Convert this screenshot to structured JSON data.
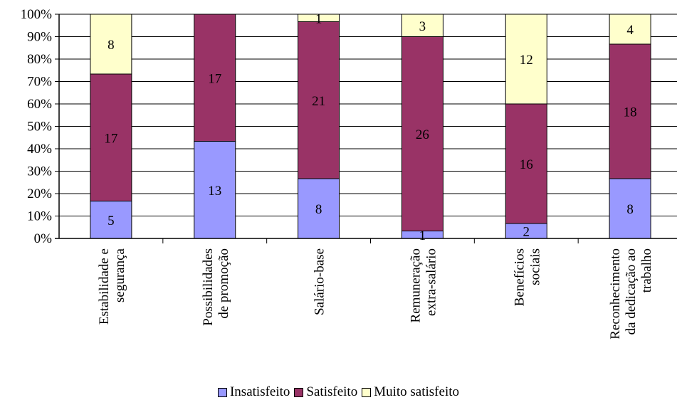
{
  "chart_data": {
    "type": "bar",
    "stacked": true,
    "percent_stacked": true,
    "categories": [
      [
        "Estabilidade e",
        "segurança"
      ],
      [
        "Possibilidades",
        "de promoção"
      ],
      [
        "Salário-base"
      ],
      [
        "Remuneração",
        "extra-salário"
      ],
      [
        "Benefícios",
        "sociais"
      ],
      [
        "Reconhecimento",
        "da dedicação ao",
        "trabalho"
      ]
    ],
    "series": [
      {
        "name": "Insatisfeito",
        "color": "#9999ff",
        "values": [
          5,
          13,
          8,
          1,
          2,
          8
        ]
      },
      {
        "name": "Satisfeito",
        "color": "#993366",
        "values": [
          17,
          17,
          21,
          26,
          16,
          18
        ]
      },
      {
        "name": "Muito satisfeito",
        "color": "#ffffcc",
        "values": [
          8,
          0,
          1,
          3,
          12,
          4
        ]
      }
    ],
    "y_ticks": [
      "0%",
      "10%",
      "20%",
      "30%",
      "40%",
      "50%",
      "60%",
      "70%",
      "80%",
      "90%",
      "100%"
    ],
    "ylim": [
      0,
      100
    ],
    "grid": true,
    "legend_position": "bottom"
  }
}
